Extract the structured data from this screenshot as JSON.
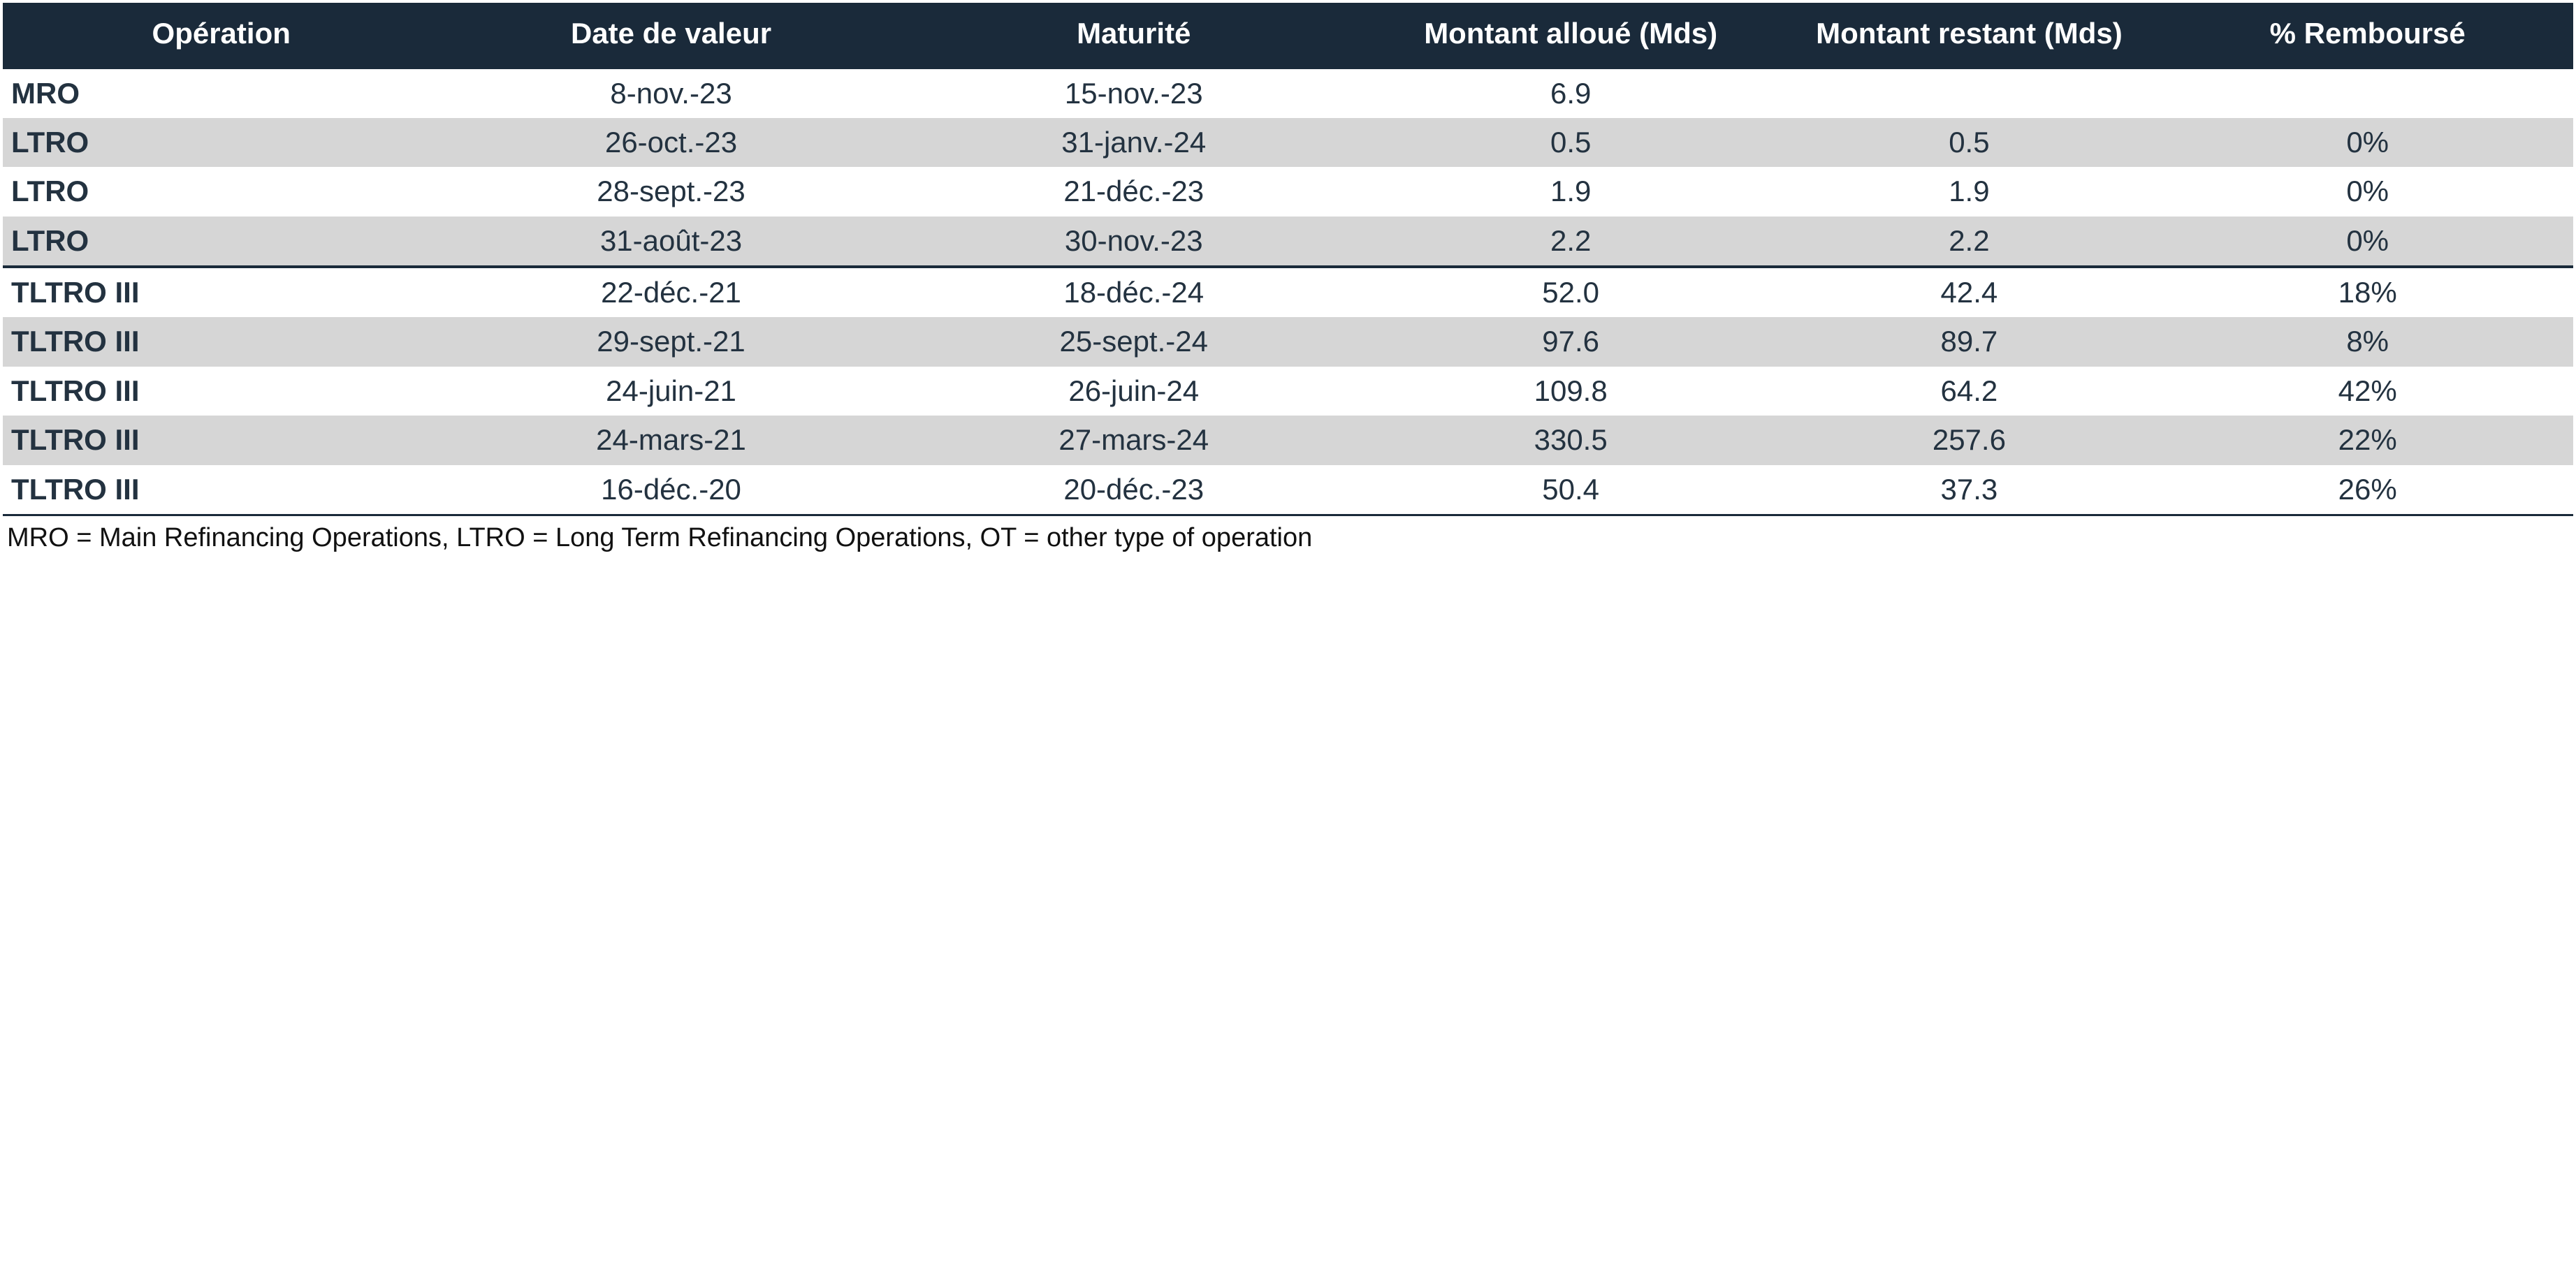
{
  "table": {
    "type": "table",
    "header_bg": "#1a2a3a",
    "header_fg": "#ffffff",
    "stripe_bg": "#d6d6d6",
    "text_color": "#233240",
    "separator_color": "#1a2a3a",
    "font_family": "Arial",
    "header_fontsize_pt": 32,
    "body_fontsize_pt": 32,
    "columns": [
      {
        "key": "op",
        "label": "Opération",
        "align": "left",
        "width_pct": 17
      },
      {
        "key": "valuedate",
        "label": "Date de valeur",
        "align": "center",
        "width_pct": 18
      },
      {
        "key": "maturity",
        "label": "Maturité",
        "align": "center",
        "width_pct": 18
      },
      {
        "key": "allocated",
        "label": "Montant alloué (Mds)",
        "align": "center",
        "width_pct": 16
      },
      {
        "key": "remaining",
        "label": "Montant restant (Mds)",
        "align": "center",
        "width_pct": 15
      },
      {
        "key": "repaid",
        "label": "% Remboursé",
        "align": "center",
        "width_pct": 16
      }
    ],
    "rows": [
      {
        "op": "MRO",
        "valuedate": "8-nov.-23",
        "maturity": "15-nov.-23",
        "allocated": "6.9",
        "remaining": "",
        "repaid": "",
        "stripe": false,
        "sep_after": false
      },
      {
        "op": "LTRO",
        "valuedate": "26-oct.-23",
        "maturity": "31-janv.-24",
        "allocated": "0.5",
        "remaining": "0.5",
        "repaid": "0%",
        "stripe": true,
        "sep_after": false
      },
      {
        "op": "LTRO",
        "valuedate": "28-sept.-23",
        "maturity": "21-déc.-23",
        "allocated": "1.9",
        "remaining": "1.9",
        "repaid": "0%",
        "stripe": false,
        "sep_after": false
      },
      {
        "op": "LTRO",
        "valuedate": "31-août-23",
        "maturity": "30-nov.-23",
        "allocated": "2.2",
        "remaining": "2.2",
        "repaid": "0%",
        "stripe": true,
        "sep_after": true
      },
      {
        "op": "TLTRO III",
        "valuedate": "22-déc.-21",
        "maturity": "18-déc.-24",
        "allocated": "52.0",
        "remaining": "42.4",
        "repaid": "18%",
        "stripe": false,
        "sep_after": false
      },
      {
        "op": "TLTRO III",
        "valuedate": "29-sept.-21",
        "maturity": "25-sept.-24",
        "allocated": "97.6",
        "remaining": "89.7",
        "repaid": "8%",
        "stripe": true,
        "sep_after": false
      },
      {
        "op": "TLTRO III",
        "valuedate": "24-juin-21",
        "maturity": "26-juin-24",
        "allocated": "109.8",
        "remaining": "64.2",
        "repaid": "42%",
        "stripe": false,
        "sep_after": false
      },
      {
        "op": "TLTRO III",
        "valuedate": "24-mars-21",
        "maturity": "27-mars-24",
        "allocated": "330.5",
        "remaining": "257.6",
        "repaid": "22%",
        "stripe": true,
        "sep_after": false
      },
      {
        "op": "TLTRO III",
        "valuedate": "16-déc.-20",
        "maturity": "20-déc.-23",
        "allocated": "50.4",
        "remaining": "37.3",
        "repaid": "26%",
        "stripe": false,
        "sep_after": false
      }
    ]
  },
  "footnote": "MRO = Main Refinancing Operations, LTRO = Long Term Refinancing Operations, OT = other type of operation"
}
